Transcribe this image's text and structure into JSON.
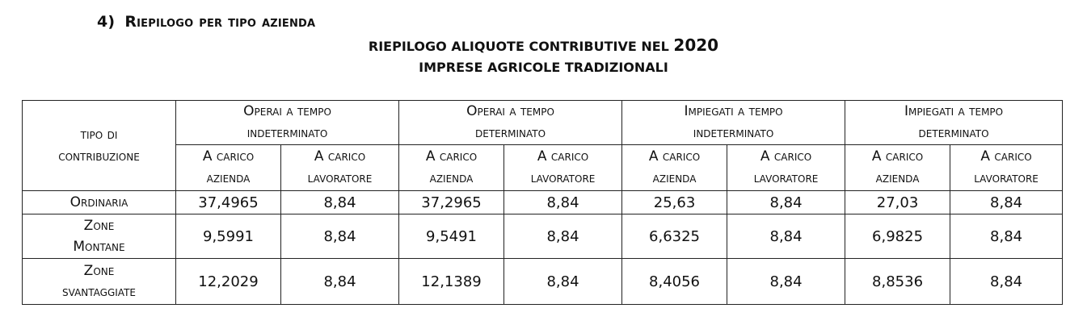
{
  "section": {
    "number": "4)",
    "title": "Riepilogo per tipo azienda"
  },
  "title": {
    "line1_text": "RIEPILOGO ALIQUOTE CONTRIBUTIVE NEL",
    "line1_year": "2020",
    "line2": "IMPRESE AGRICOLE TRADIZIONALI"
  },
  "table": {
    "type_header_line1": "tipo di",
    "type_header_line2": "contribuzione",
    "groups": [
      {
        "line1": "Operai a tempo",
        "line2": "indeterminato"
      },
      {
        "line1": "Operai a tempo",
        "line2": "determinato"
      },
      {
        "line1": "Impiegati a tempo",
        "line2": "indeterminato"
      },
      {
        "line1": "Impiegati a tempo",
        "line2": "determinato"
      }
    ],
    "sub_headers": {
      "azienda_line1": "A carico",
      "azienda_line2": "azienda",
      "lavoratore_line1": "A carico",
      "lavoratore_line2": "lavoratore"
    },
    "rows": [
      {
        "label_line1": "Ordinaria",
        "label_line2": "",
        "values": [
          "37,4965",
          "8,84",
          "37,2965",
          "8,84",
          "25,63",
          "8,84",
          "27,03",
          "8,84"
        ]
      },
      {
        "label_line1": "Zone",
        "label_line2": "Montane",
        "values": [
          "9,5991",
          "8,84",
          "9,5491",
          "8,84",
          "6,6325",
          "8,84",
          "6,9825",
          "8,84"
        ]
      },
      {
        "label_line1": "Zone",
        "label_line2": "svantaggiate",
        "values": [
          "12,2029",
          "8,84",
          "12,1389",
          "8,84",
          "8,4056",
          "8,84",
          "8,8536",
          "8,84"
        ]
      }
    ]
  }
}
